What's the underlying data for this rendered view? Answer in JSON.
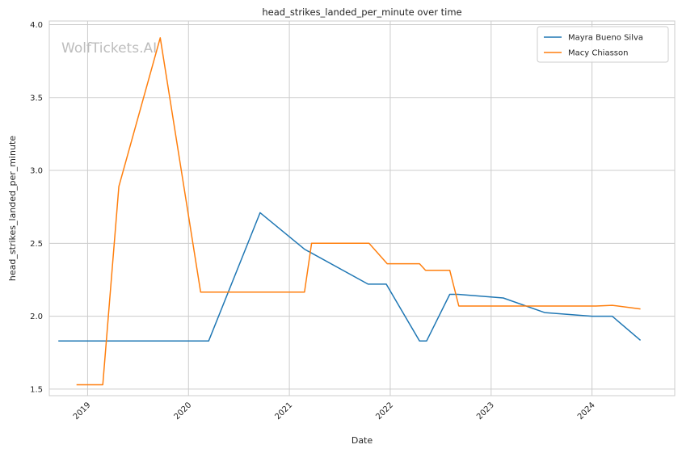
{
  "chart_data": {
    "type": "line",
    "title": "head_strikes_landed_per_minute over time",
    "xlabel": "Date",
    "ylabel": "head_strikes_landed_per_minute",
    "watermark": "WolfTickets.AI",
    "xlim": [
      2018.62,
      2024.82
    ],
    "ylim": [
      1.455,
      4.025
    ],
    "xticks": [
      {
        "value": 2019,
        "label": "2019"
      },
      {
        "value": 2020,
        "label": "2020"
      },
      {
        "value": 2021,
        "label": "2021"
      },
      {
        "value": 2022,
        "label": "2022"
      },
      {
        "value": 2023,
        "label": "2023"
      },
      {
        "value": 2024,
        "label": "2024"
      }
    ],
    "yticks": [
      {
        "value": 1.5,
        "label": "1.5"
      },
      {
        "value": 2.0,
        "label": "2.0"
      },
      {
        "value": 2.5,
        "label": "2.5"
      },
      {
        "value": 3.0,
        "label": "3.0"
      },
      {
        "value": 3.5,
        "label": "3.5"
      },
      {
        "value": 4.0,
        "label": "4.0"
      }
    ],
    "grid": true,
    "legend_position": "top-right",
    "series": [
      {
        "name": "Mayra Bueno Silva",
        "color": "#1f77b4",
        "points": [
          [
            2018.71,
            1.83
          ],
          [
            2020.2,
            1.83
          ],
          [
            2020.71,
            2.71
          ],
          [
            2021.15,
            2.46
          ],
          [
            2021.78,
            2.22
          ],
          [
            2021.96,
            2.22
          ],
          [
            2022.29,
            1.83
          ],
          [
            2022.36,
            1.83
          ],
          [
            2022.59,
            2.15
          ],
          [
            2022.67,
            2.15
          ],
          [
            2023.12,
            2.125
          ],
          [
            2023.53,
            2.025
          ],
          [
            2024.0,
            2.0
          ],
          [
            2024.2,
            2.0
          ],
          [
            2024.48,
            1.835
          ]
        ]
      },
      {
        "name": "Macy Chiasson",
        "color": "#ff7f0e",
        "points": [
          [
            2018.89,
            1.53
          ],
          [
            2019.15,
            1.53
          ],
          [
            2019.31,
            2.89
          ],
          [
            2019.72,
            3.91
          ],
          [
            2020.12,
            2.165
          ],
          [
            2021.15,
            2.165
          ],
          [
            2021.22,
            2.5
          ],
          [
            2021.79,
            2.5
          ],
          [
            2021.97,
            2.36
          ],
          [
            2022.29,
            2.36
          ],
          [
            2022.35,
            2.315
          ],
          [
            2022.59,
            2.315
          ],
          [
            2022.68,
            2.07
          ],
          [
            2024.04,
            2.07
          ],
          [
            2024.2,
            2.075
          ],
          [
            2024.48,
            2.05
          ]
        ]
      }
    ]
  }
}
